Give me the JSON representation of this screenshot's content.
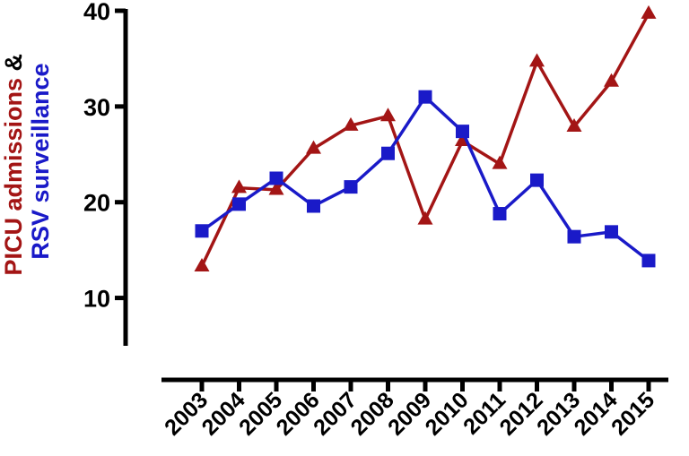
{
  "chart_data": {
    "type": "line",
    "title": "",
    "xlabel": "",
    "ylabel_parts": [
      {
        "text": "PICU admissions",
        "color": "#a31515"
      },
      {
        "text": " &",
        "color": "#000000"
      },
      {
        "text": "RSV surveillance",
        "color": "#1a1ac8"
      }
    ],
    "ylim": [
      5,
      40
    ],
    "yticks": [
      10,
      20,
      30,
      40
    ],
    "categories": [
      "2003",
      "2004",
      "2005",
      "2006",
      "2007",
      "2008",
      "2009",
      "2010",
      "2011",
      "2012",
      "2013",
      "2014",
      "2015"
    ],
    "series": [
      {
        "color": "#a31515",
        "marker": "triangle",
        "values": [
          13.3,
          21.5,
          21.3,
          25.6,
          28.0,
          29.0,
          18.2,
          26.4,
          24.0,
          34.7,
          27.9,
          32.6,
          39.7
        ]
      },
      {
        "color": "#1a1ac8",
        "marker": "square",
        "values": [
          17.0,
          19.8,
          22.5,
          19.6,
          21.6,
          25.1,
          31.0,
          27.4,
          18.8,
          22.3,
          16.4,
          16.9,
          13.9
        ]
      }
    ],
    "grid": false,
    "legend": "none"
  }
}
